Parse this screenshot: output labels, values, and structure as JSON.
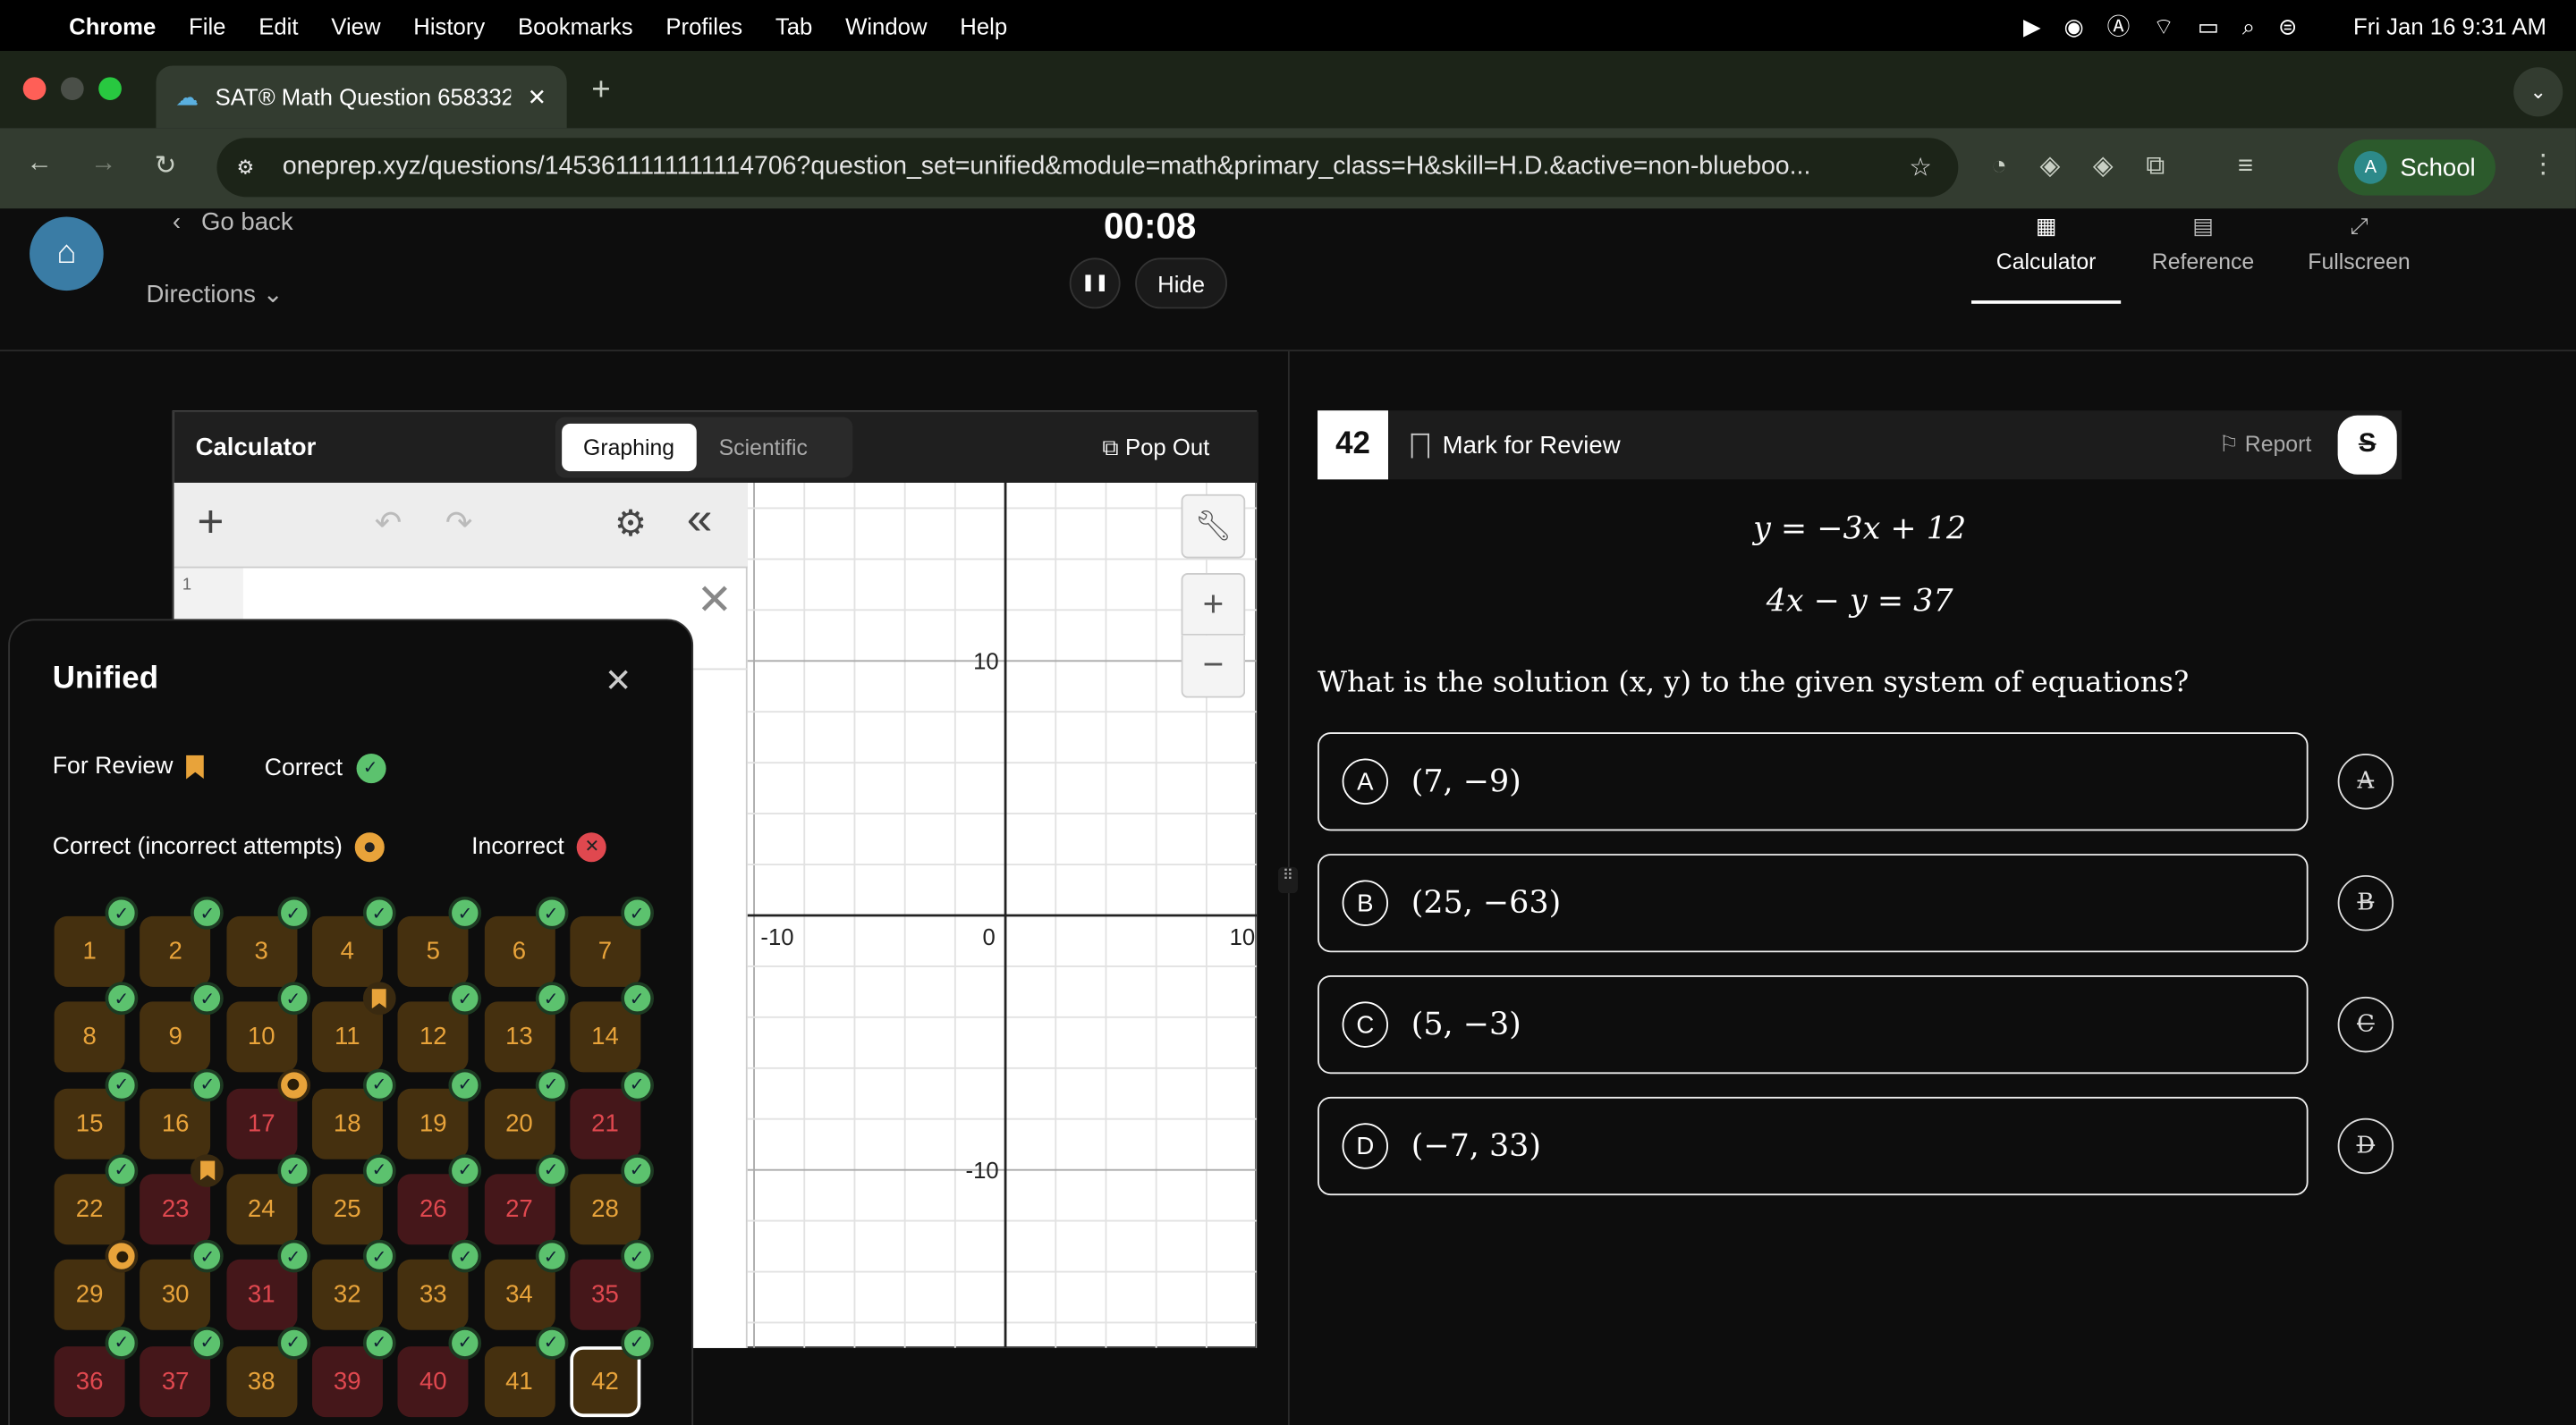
{
  "menubar": {
    "app": "Chrome",
    "items": [
      "File",
      "Edit",
      "View",
      "History",
      "Bookmarks",
      "Profiles",
      "Tab",
      "Window",
      "Help"
    ],
    "clock": "Fri Jan 16  9:31 AM"
  },
  "browser": {
    "tab_title": "SAT® Math Question 658332",
    "url": "oneprep.xyz/questions/1453611111111114706?question_set=unified&module=math&primary_class=H&skill=H.D.&active=non-blueboo...",
    "profile": "School",
    "profile_initial": "A"
  },
  "header": {
    "go_back": "Go back",
    "directions": "Directions",
    "timer": "00:08",
    "hide": "Hide",
    "tools": [
      {
        "label": "Calculator",
        "active": true
      },
      {
        "label": "Reference"
      },
      {
        "label": "Fullscreen"
      }
    ]
  },
  "calculator": {
    "title": "Calculator",
    "tabs": [
      "Graphing",
      "Scientific"
    ],
    "active_tab": "Graphing",
    "pop_out": "Pop Out",
    "expression_index": "1",
    "x_ticks": [
      "-10",
      "0",
      "10"
    ],
    "y_ticks": [
      "10",
      "-10"
    ],
    "x_range": [
      -10,
      10
    ],
    "y_range": [
      -17,
      17
    ]
  },
  "overview": {
    "title": "Unified",
    "legend": {
      "review": "For Review",
      "correct": "Correct",
      "correct_attempts": "Correct (incorrect attempts)",
      "incorrect": "Incorrect"
    },
    "questions": [
      {
        "n": "1",
        "s": "c",
        "b": "check"
      },
      {
        "n": "2",
        "s": "c",
        "b": "check"
      },
      {
        "n": "3",
        "s": "c",
        "b": "check"
      },
      {
        "n": "4",
        "s": "c",
        "b": "check"
      },
      {
        "n": "5",
        "s": "c",
        "b": "check"
      },
      {
        "n": "6",
        "s": "c",
        "b": "check"
      },
      {
        "n": "7",
        "s": "c",
        "b": "check"
      },
      {
        "n": "8",
        "s": "c",
        "b": "check"
      },
      {
        "n": "9",
        "s": "c",
        "b": "check"
      },
      {
        "n": "10",
        "s": "c",
        "b": "check"
      },
      {
        "n": "11",
        "s": "c",
        "b": "bookmark"
      },
      {
        "n": "12",
        "s": "c",
        "b": "check"
      },
      {
        "n": "13",
        "s": "c",
        "b": "check"
      },
      {
        "n": "14",
        "s": "c",
        "b": "check"
      },
      {
        "n": "15",
        "s": "c",
        "b": "check"
      },
      {
        "n": "16",
        "s": "c",
        "b": "check"
      },
      {
        "n": "17",
        "s": "i",
        "b": "dot"
      },
      {
        "n": "18",
        "s": "c",
        "b": "check"
      },
      {
        "n": "19",
        "s": "c",
        "b": "check"
      },
      {
        "n": "20",
        "s": "c",
        "b": "check"
      },
      {
        "n": "21",
        "s": "i",
        "b": "check"
      },
      {
        "n": "22",
        "s": "c",
        "b": "check"
      },
      {
        "n": "23",
        "s": "i",
        "b": "bookmark"
      },
      {
        "n": "24",
        "s": "c",
        "b": "check"
      },
      {
        "n": "25",
        "s": "c",
        "b": "check"
      },
      {
        "n": "26",
        "s": "i",
        "b": "check"
      },
      {
        "n": "27",
        "s": "i",
        "b": "check"
      },
      {
        "n": "28",
        "s": "c",
        "b": "check"
      },
      {
        "n": "29",
        "s": "c",
        "b": "dot"
      },
      {
        "n": "30",
        "s": "c",
        "b": "check"
      },
      {
        "n": "31",
        "s": "i",
        "b": "check"
      },
      {
        "n": "32",
        "s": "c",
        "b": "check"
      },
      {
        "n": "33",
        "s": "c",
        "b": "check"
      },
      {
        "n": "34",
        "s": "c",
        "b": "check"
      },
      {
        "n": "35",
        "s": "i",
        "b": "check"
      },
      {
        "n": "36",
        "s": "i",
        "b": "check"
      },
      {
        "n": "37",
        "s": "i",
        "b": "check"
      },
      {
        "n": "38",
        "s": "c",
        "b": "check"
      },
      {
        "n": "39",
        "s": "i",
        "b": "check"
      },
      {
        "n": "40",
        "s": "i",
        "b": "check"
      },
      {
        "n": "41",
        "s": "c",
        "b": "check"
      },
      {
        "n": "42",
        "s": "c",
        "b": "check",
        "current": true
      }
    ]
  },
  "question": {
    "number": "42",
    "mark": "Mark for Review",
    "report": "Report",
    "eq1": "y = −3x + 12",
    "eq2": "4x − y = 37",
    "prompt": "What is the solution (x, y) to the given system of equations?",
    "choices": [
      {
        "letter": "A",
        "text": "(7, −9)"
      },
      {
        "letter": "B",
        "text": "(25, −63)"
      },
      {
        "letter": "C",
        "text": "(5, −3)"
      },
      {
        "letter": "D",
        "text": "(−7, 33)"
      }
    ]
  },
  "colors": {
    "correct_bg": "#45300f",
    "correct_fg": "#e8a33a",
    "incorrect_bg": "#45171a",
    "incorrect_fg": "#e0484f",
    "check": "#5cc26e",
    "orange": "#e8a33a",
    "tab_bar": "#1c2418",
    "toolbar": "#333c30"
  }
}
